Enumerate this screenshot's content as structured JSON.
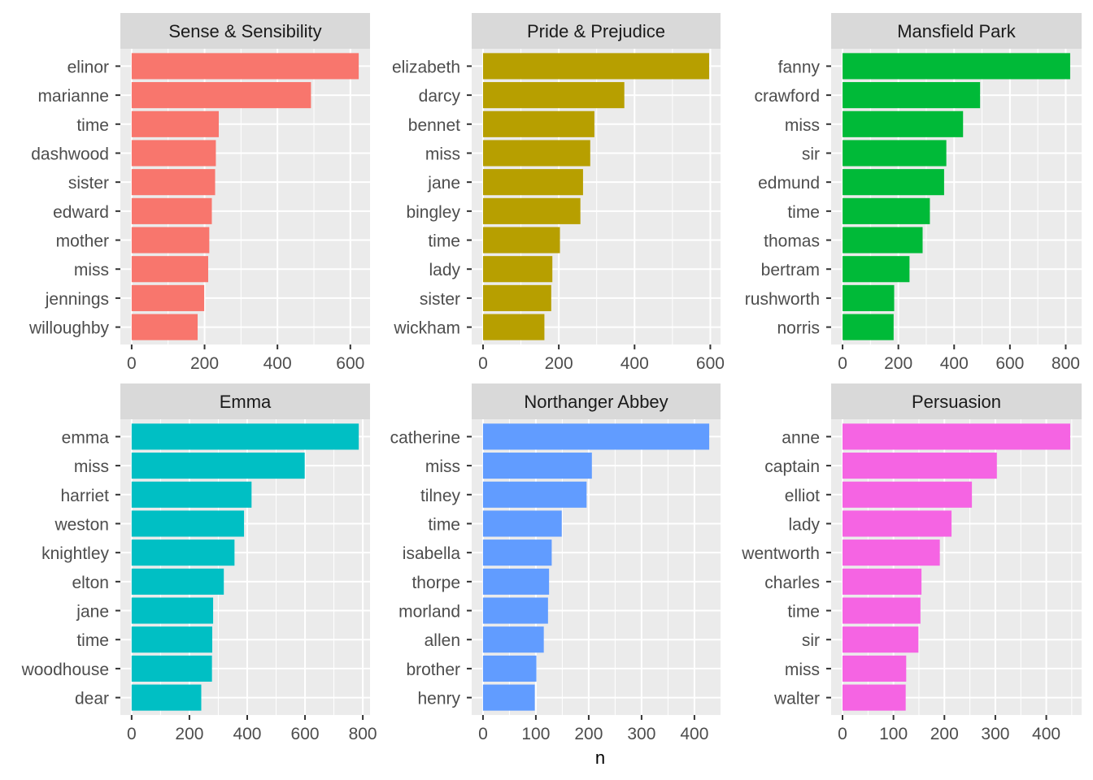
{
  "xlabel": "n",
  "chart_data": [
    {
      "type": "bar",
      "orientation": "horizontal",
      "title": "Sense & Sensibility",
      "color": "#F8766D",
      "categories": [
        "elinor",
        "marianne",
        "time",
        "dashwood",
        "sister",
        "edward",
        "mother",
        "miss",
        "jennings",
        "willoughby"
      ],
      "values": [
        623,
        492,
        239,
        231,
        229,
        220,
        213,
        210,
        199,
        181
      ],
      "xticks": [
        0,
        200,
        400,
        600
      ],
      "xlim": [
        -31,
        654
      ],
      "xlabel": "n"
    },
    {
      "type": "bar",
      "orientation": "horizontal",
      "title": "Pride & Prejudice",
      "color": "#B79F00",
      "categories": [
        "elizabeth",
        "darcy",
        "bennet",
        "miss",
        "jane",
        "bingley",
        "time",
        "lady",
        "sister",
        "wickham"
      ],
      "values": [
        597,
        373,
        294,
        283,
        264,
        257,
        203,
        183,
        180,
        162
      ],
      "xticks": [
        0,
        200,
        400,
        600
      ],
      "xlim": [
        -30,
        627
      ],
      "xlabel": "n"
    },
    {
      "type": "bar",
      "orientation": "horizontal",
      "title": "Mansfield Park",
      "color": "#00BA38",
      "categories": [
        "fanny",
        "crawford",
        "miss",
        "sir",
        "edmund",
        "time",
        "thomas",
        "bertram",
        "rushworth",
        "norris"
      ],
      "values": [
        816,
        493,
        432,
        372,
        364,
        313,
        287,
        240,
        185,
        183
      ],
      "xticks": [
        0,
        200,
        400,
        600,
        800
      ],
      "xlim": [
        -41,
        857
      ],
      "xlabel": "n"
    },
    {
      "type": "bar",
      "orientation": "horizontal",
      "title": "Emma",
      "color": "#00BFC4",
      "categories": [
        "emma",
        "miss",
        "harriet",
        "weston",
        "knightley",
        "elton",
        "jane",
        "time",
        "woodhouse",
        "dear"
      ],
      "values": [
        786,
        599,
        415,
        389,
        356,
        319,
        282,
        279,
        278,
        241
      ],
      "xticks": [
        0,
        200,
        400,
        600,
        800
      ],
      "xlim": [
        -39,
        825
      ],
      "xlabel": "n"
    },
    {
      "type": "bar",
      "orientation": "horizontal",
      "title": "Northanger Abbey",
      "color": "#619CFF",
      "categories": [
        "catherine",
        "miss",
        "tilney",
        "time",
        "isabella",
        "thorpe",
        "morland",
        "allen",
        "brother",
        "henry"
      ],
      "values": [
        428,
        206,
        196,
        149,
        130,
        125,
        123,
        115,
        101,
        98
      ],
      "xticks": [
        0,
        100,
        200,
        300,
        400
      ],
      "xlim": [
        -21.4,
        449.4
      ],
      "xlabel": "n"
    },
    {
      "type": "bar",
      "orientation": "horizontal",
      "title": "Persuasion",
      "color": "#F564E3",
      "categories": [
        "anne",
        "captain",
        "elliot",
        "lady",
        "wentworth",
        "charles",
        "time",
        "sir",
        "miss",
        "walter"
      ],
      "values": [
        447,
        303,
        254,
        214,
        191,
        155,
        153,
        149,
        125,
        124
      ],
      "xticks": [
        0,
        100,
        200,
        300,
        400
      ],
      "xlim": [
        -22.35,
        469.35
      ],
      "xlabel": "n"
    }
  ]
}
